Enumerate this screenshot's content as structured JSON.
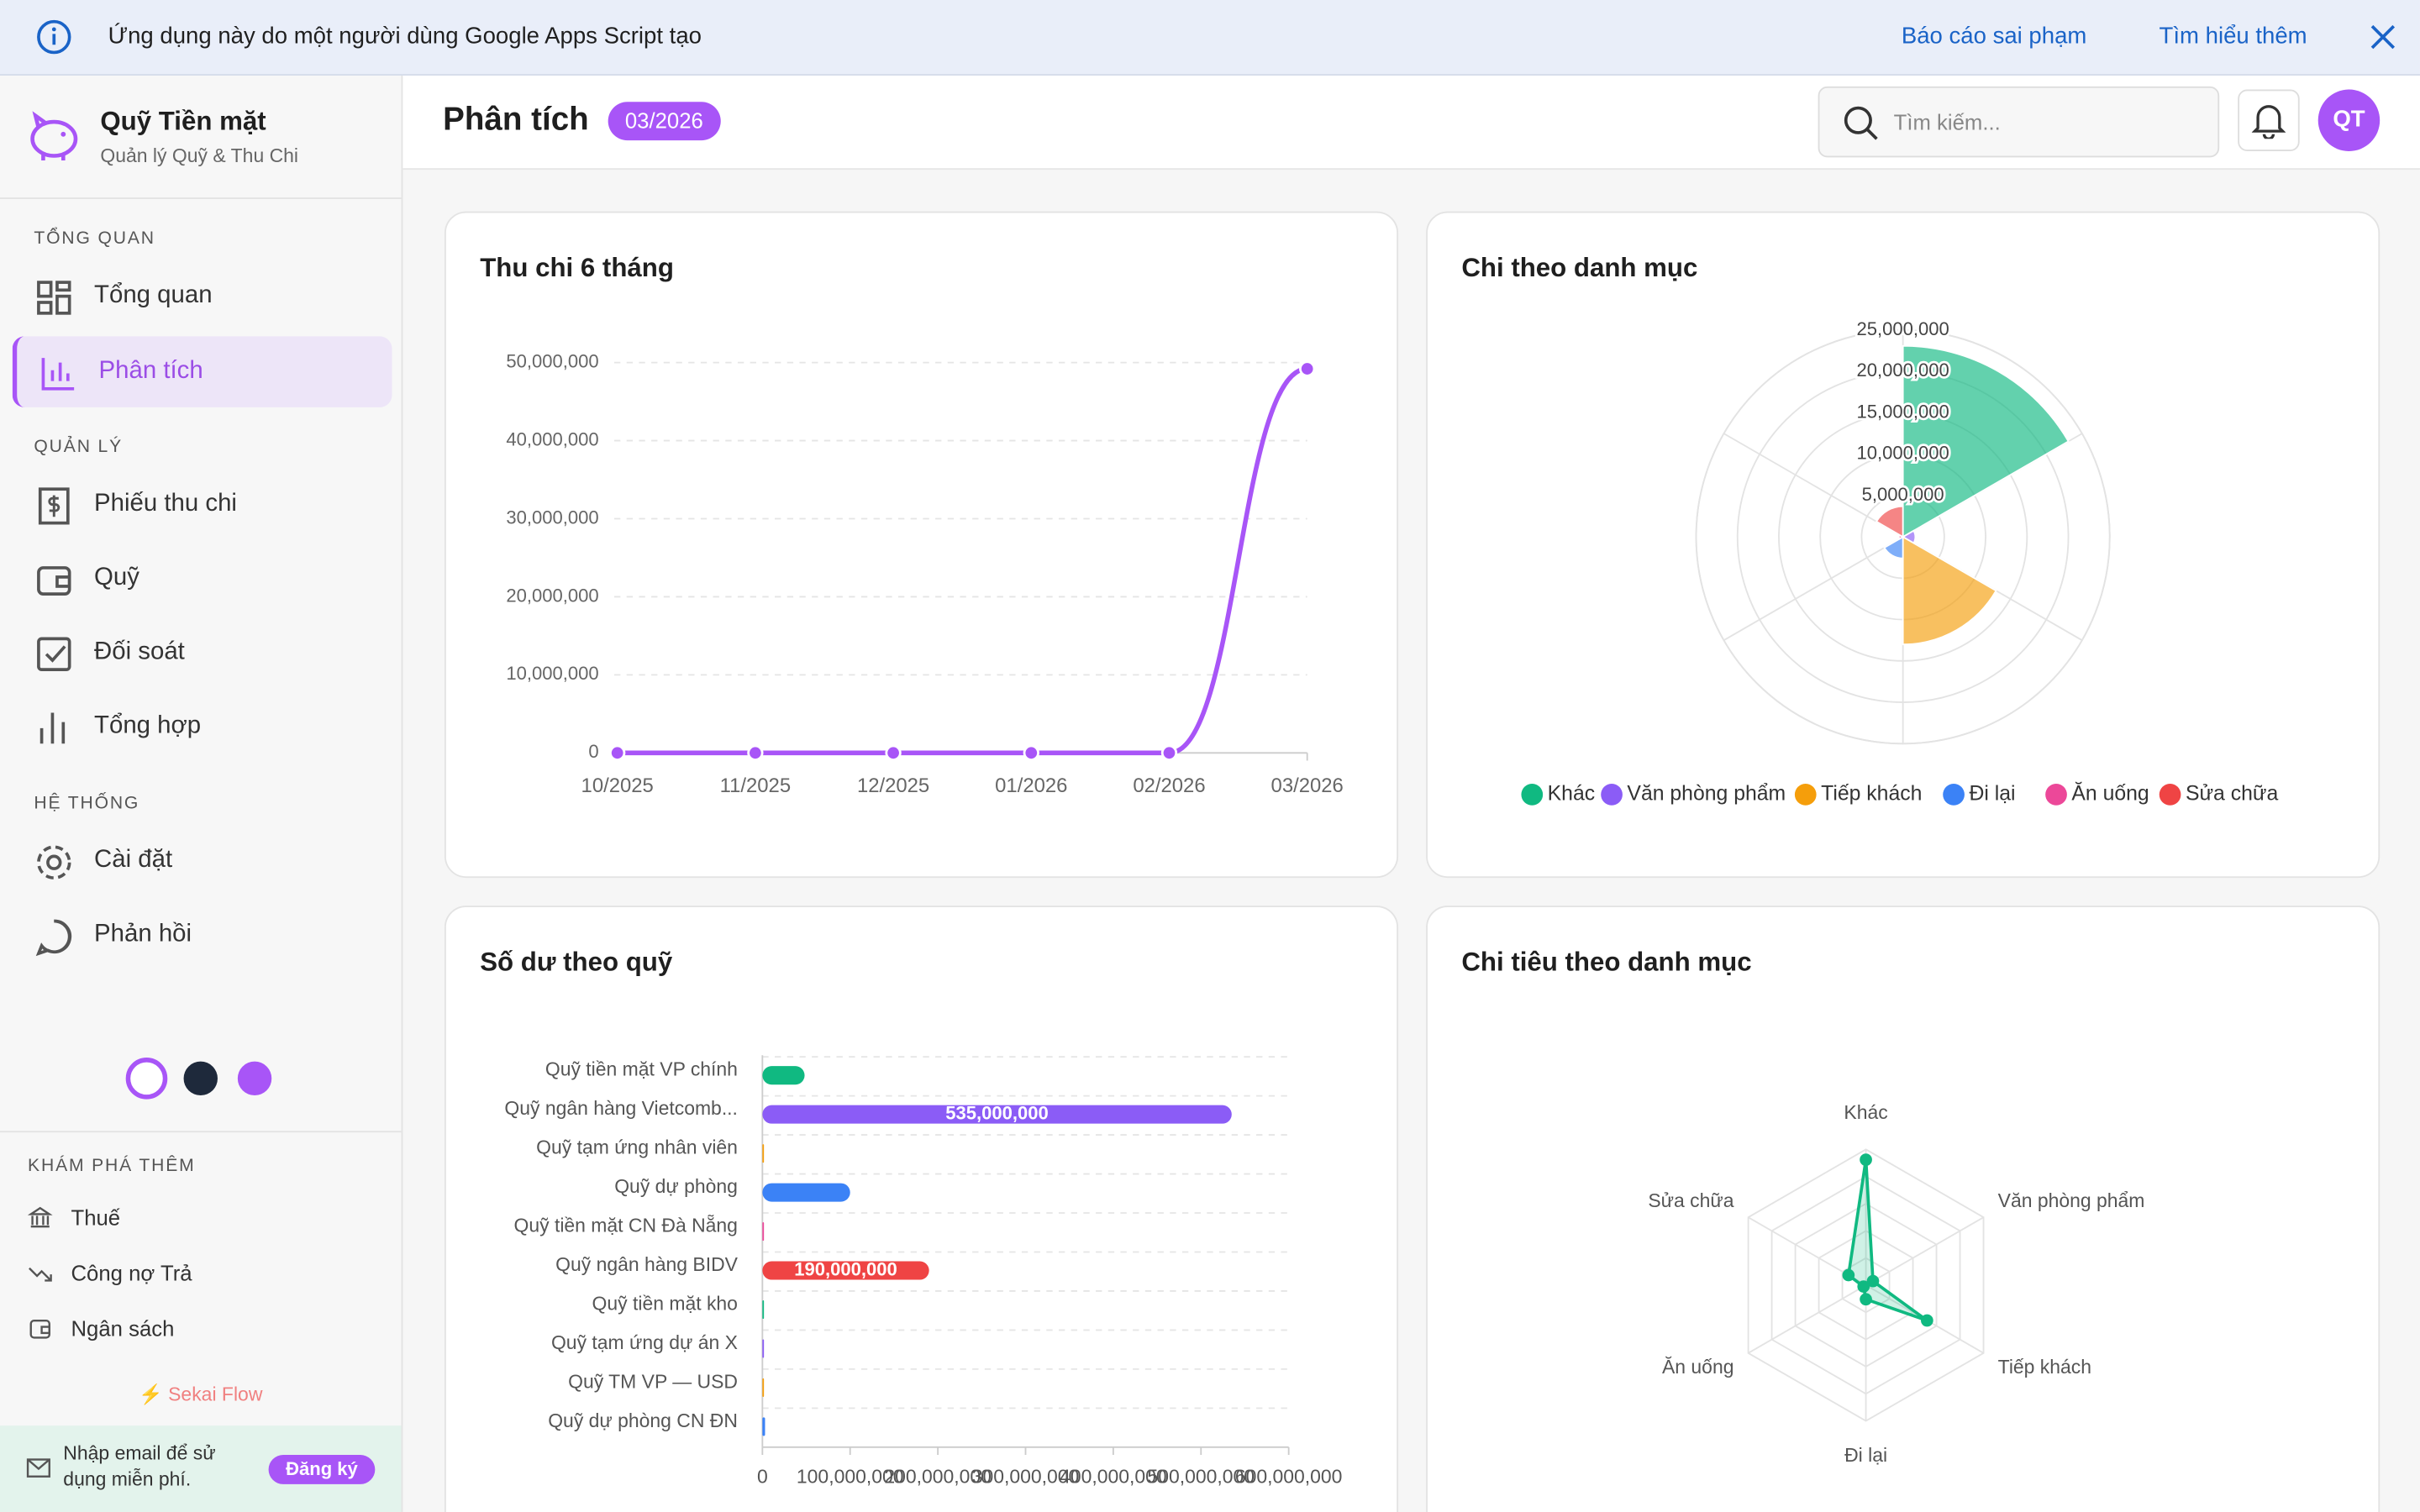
{
  "banner": {
    "message": "Ứng dụng này do một người dùng Google Apps Script tạo",
    "report": "Báo cáo sai phạm",
    "learn_more": "Tìm hiểu thêm"
  },
  "sidebar": {
    "brand": {
      "name": "Quỹ Tiền mặt",
      "tagline": "Quản lý Quỹ & Thu Chi"
    },
    "sections": [
      {
        "title": "TỔNG QUAN",
        "items": [
          "Tổng quan",
          "Phân tích"
        ]
      },
      {
        "title": "QUẢN LÝ",
        "items": [
          "Phiếu thu chi",
          "Quỹ",
          "Đối soát",
          "Tổng hợp"
        ]
      },
      {
        "title": "HỆ THỐNG",
        "items": [
          "Cài đặt",
          "Phản hồi"
        ]
      }
    ],
    "explore": {
      "title": "KHÁM PHÁ THÊM",
      "items": [
        "Thuế",
        "Công nợ Trả",
        "Ngân sách"
      ]
    },
    "footer_brand": "Sekai Flow",
    "signup": {
      "text": "Nhập email để sử dụng miễn phí.",
      "button": "Đăng ký"
    }
  },
  "header": {
    "title": "Phân tích",
    "period": "03/2026",
    "search_placeholder": "Tìm kiếm...",
    "avatar": "QT"
  },
  "chart_data": [
    {
      "type": "line",
      "title": "Thu chi 6 tháng",
      "categories": [
        "10/2025",
        "11/2025",
        "12/2025",
        "01/2026",
        "02/2026",
        "03/2026"
      ],
      "values": [
        0,
        0,
        0,
        0,
        0,
        49200000
      ],
      "color": "#a855f7",
      "ylim": [
        0,
        50000000
      ],
      "yticks": [
        0,
        {
          "value": 10000000,
          "label": "10,000,000"
        },
        {
          "value": 20000000,
          "label": "20,000,000"
        },
        {
          "value": 30000000,
          "label": "30,000,000"
        },
        {
          "value": 40000000,
          "label": "40,000,000"
        },
        {
          "value": 50000000,
          "label": "50,000,000"
        }
      ],
      "grid": true
    },
    {
      "type": "polar",
      "title": "Chi theo danh mục",
      "categories": [
        "Khác",
        "Văn phòng phẩm",
        "Tiếp khách",
        "Đi lại",
        "Ăn uống",
        "Sửa chữa"
      ],
      "values": [
        23100000,
        1500000,
        13000000,
        2600000,
        500000,
        3700000
      ],
      "colors": [
        "#10b981",
        "#8b5cf6",
        "#f59e0b",
        "#3b82f6",
        "#ec4899",
        "#ef4444"
      ],
      "rlim": [
        0,
        25000000
      ],
      "rticks": [
        {
          "value": 5000000,
          "label": "5,000,000"
        },
        {
          "value": 10000000,
          "label": "10,000,000"
        },
        {
          "value": 15000000,
          "label": "15,000,000"
        },
        {
          "value": 20000000,
          "label": "20,000,000"
        },
        {
          "value": 25000000,
          "label": "25,000,000"
        }
      ],
      "legend": "bottom"
    },
    {
      "type": "hbar",
      "title": "Số dư theo quỹ",
      "categories": [
        "Quỹ tiền mặt VP chính",
        "Quỹ ngân hàng Vietcomb...",
        "Quỹ tạm ứng nhân viên",
        "Quỹ dự phòng",
        "Quỹ tiền mặt CN Đà Nẵng",
        "Quỹ ngân hàng BIDV",
        "Quỹ tiền mặt kho",
        "Quỹ tạm ứng dự án X",
        "Quỹ TM VP — USD",
        "Quỹ dự phòng CN ĐN"
      ],
      "values": [
        48100000,
        535000000,
        1500000,
        100000000,
        1200000,
        190000000,
        200000,
        1000000,
        0,
        3000000
      ],
      "value_labels": [
        null,
        "535,000,000",
        null,
        null,
        null,
        "190,000,000",
        null,
        null,
        null,
        null
      ],
      "colors": [
        "#10b981",
        "#8b5cf6",
        "#f59e0b",
        "#3b82f6",
        "#ec4899",
        "#ef4444",
        "#10b981",
        "#8b5cf6",
        "#f59e0b",
        "#3b82f6"
      ],
      "xlim": [
        0,
        600000000
      ],
      "xticks": [
        0,
        {
          "value": 100000000,
          "label": "100,000,000"
        },
        {
          "value": 200000000,
          "label": "200,000,000"
        },
        {
          "value": 300000000,
          "label": "300,000,000"
        },
        {
          "value": 400000000,
          "label": "400,000,000"
        },
        {
          "value": 500000000,
          "label": "500,000,000"
        },
        {
          "value": 600000000,
          "label": "600,000,000"
        }
      ],
      "grid": true
    },
    {
      "type": "radar",
      "title": "Chi tiêu theo danh mục",
      "categories": [
        "Khác",
        "Văn phòng phẩm",
        "Tiếp khách",
        "Đi lại",
        "Ăn uống",
        "Sửa chữa"
      ],
      "values": [
        23100000,
        1500000,
        13000000,
        2600000,
        500000,
        3700000
      ],
      "color": "#10b981",
      "rlim": [
        0,
        25000000
      ]
    }
  ]
}
